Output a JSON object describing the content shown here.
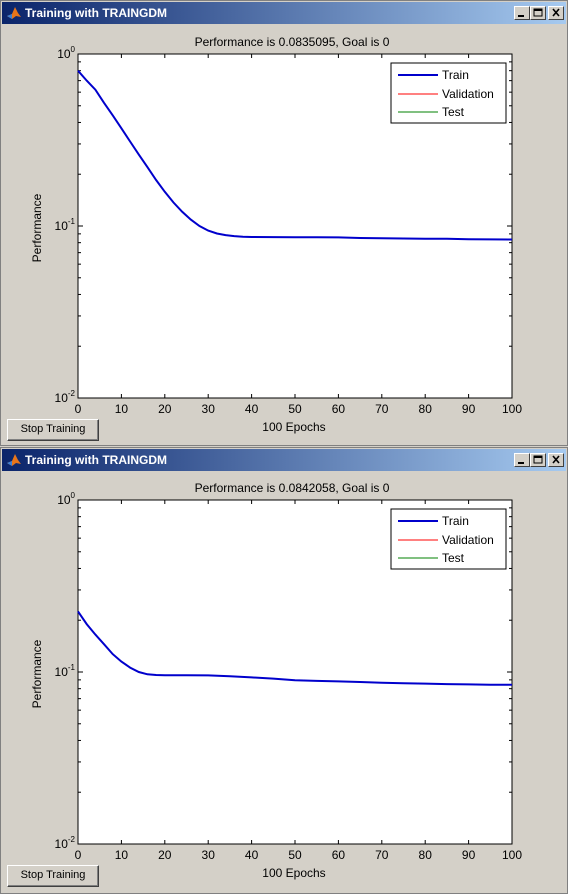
{
  "windows": [
    {
      "title": "Training with TRAINGDM",
      "plot_title": "Performance is 0.0835095, Goal is 0",
      "xlabel": "100 Epochs",
      "ylabel": "Performance",
      "legend": [
        "Train",
        "Validation",
        "Test"
      ],
      "stop_label": "Stop Training"
    },
    {
      "title": "Training with TRAINGDM",
      "plot_title": "Performance is 0.0842058, Goal is 0",
      "xlabel": "100 Epochs",
      "ylabel": "Performance",
      "legend": [
        "Train",
        "Validation",
        "Test"
      ],
      "stop_label": "Stop Training"
    }
  ],
  "colors": {
    "train": "#0000cc",
    "validation": "#ff0000",
    "test": "#008000",
    "title_bar_start": "#0a246a",
    "title_bar_end": "#a6caf0",
    "face": "#d4d0c8"
  },
  "icons": {
    "app": "matlab-logo-icon",
    "minimize": "minimize-icon",
    "maximize": "maximize-icon",
    "close": "close-icon"
  },
  "chart_data": [
    {
      "type": "line",
      "title": "Performance is 0.0835095, Goal is 0",
      "xlabel": "100 Epochs",
      "ylabel": "Performance",
      "yscale": "log",
      "xlim": [
        0,
        100
      ],
      "ylim": [
        0.01,
        1
      ],
      "x_ticks": [
        "0",
        "10",
        "20",
        "30",
        "40",
        "50",
        "60",
        "70",
        "80",
        "90",
        "100"
      ],
      "y_ticks": [
        "10^-2",
        "10^-1",
        "10^0"
      ],
      "legend_position": "top-right",
      "series": [
        {
          "name": "Train",
          "x": [
            0,
            2,
            4,
            6,
            8,
            10,
            12,
            14,
            16,
            18,
            20,
            22,
            24,
            26,
            28,
            30,
            32,
            34,
            36,
            38,
            40,
            45,
            50,
            55,
            60,
            65,
            70,
            75,
            80,
            85,
            90,
            95,
            100
          ],
          "y": [
            0.8,
            0.7,
            0.62,
            0.52,
            0.44,
            0.37,
            0.31,
            0.26,
            0.22,
            0.185,
            0.158,
            0.137,
            0.121,
            0.109,
            0.1,
            0.094,
            0.0905,
            0.0885,
            0.0873,
            0.0866,
            0.0863,
            0.0862,
            0.0861,
            0.086,
            0.0858,
            0.0852,
            0.0848,
            0.0846,
            0.0844,
            0.0843,
            0.0838,
            0.0836,
            0.0835
          ]
        },
        {
          "name": "Validation",
          "x": [],
          "y": []
        },
        {
          "name": "Test",
          "x": [],
          "y": []
        }
      ]
    },
    {
      "type": "line",
      "title": "Performance is 0.0842058, Goal is 0",
      "xlabel": "100 Epochs",
      "ylabel": "Performance",
      "yscale": "log",
      "xlim": [
        0,
        100
      ],
      "ylim": [
        0.01,
        1
      ],
      "x_ticks": [
        "0",
        "10",
        "20",
        "30",
        "40",
        "50",
        "60",
        "70",
        "80",
        "90",
        "100"
      ],
      "y_ticks": [
        "10^-2",
        "10^-1",
        "10^0"
      ],
      "legend_position": "top-right",
      "series": [
        {
          "name": "Train",
          "x": [
            0,
            2,
            4,
            6,
            8,
            10,
            12,
            14,
            16,
            18,
            20,
            25,
            30,
            35,
            40,
            45,
            50,
            55,
            60,
            65,
            70,
            75,
            80,
            85,
            90,
            95,
            100
          ],
          "y": [
            0.225,
            0.19,
            0.165,
            0.145,
            0.127,
            0.115,
            0.106,
            0.1,
            0.097,
            0.096,
            0.0958,
            0.0957,
            0.0955,
            0.0945,
            0.093,
            0.0915,
            0.0895,
            0.0888,
            0.0882,
            0.0875,
            0.0866,
            0.086,
            0.0856,
            0.0851,
            0.0847,
            0.0844,
            0.0842
          ]
        },
        {
          "name": "Validation",
          "x": [],
          "y": []
        },
        {
          "name": "Test",
          "x": [],
          "y": []
        }
      ]
    }
  ]
}
